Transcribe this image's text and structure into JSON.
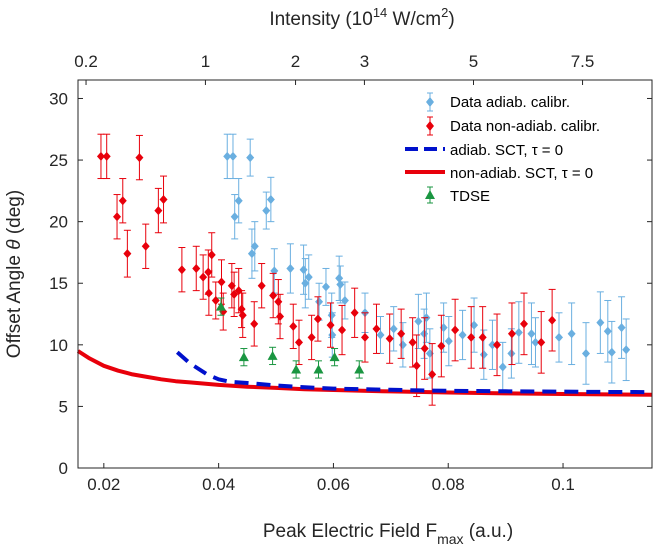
{
  "chart_data": {
    "type": "scatter",
    "xlabel_main": "Peak Electric Field F",
    "xlabel_sub": "max",
    "xlabel_unit": " (a.u.)",
    "ylabel_main": "Offset Angle ",
    "ylabel_symbol": "θ",
    "ylabel_unit": " (deg)",
    "top_xlabel_main": "Intensity (10",
    "top_xlabel_sup1": "14",
    "top_xlabel_mid": " W/cm",
    "top_xlabel_sup2": "2",
    "top_xlabel_end": ")",
    "xlim": [
      0.0155,
      0.1155
    ],
    "ylim": [
      0,
      31.5
    ],
    "x_ticks": [
      0.02,
      0.04,
      0.06,
      0.08,
      0.1
    ],
    "x_tick_labels": [
      "0.02",
      "0.04",
      "0.06",
      "0.08",
      "0.1"
    ],
    "y_ticks": [
      0,
      5,
      10,
      15,
      20,
      25,
      30
    ],
    "y_tick_labels": [
      "0",
      "5",
      "10",
      "15",
      "20",
      "25",
      "30"
    ],
    "top_ticks": [
      {
        "x": 0.0169,
        "label": "0.2"
      },
      {
        "x": 0.0377,
        "label": "1"
      },
      {
        "x": 0.0534,
        "label": "2"
      },
      {
        "x": 0.0654,
        "label": "3"
      },
      {
        "x": 0.0844,
        "label": "5"
      },
      {
        "x": 0.1034,
        "label": "7.5"
      }
    ],
    "legend_position": "top-right",
    "series": [
      {
        "name": "Data adiab. calibr.",
        "kind": "errorbar-diamond",
        "color": "#6aafe0",
        "points": [
          [
            0.0415,
            25.3,
            1.8
          ],
          [
            0.0425,
            25.3,
            1.8
          ],
          [
            0.0455,
            25.2,
            1.5
          ],
          [
            0.0428,
            20.4,
            1.8
          ],
          [
            0.0435,
            21.7,
            1.8
          ],
          [
            0.0463,
            18.0,
            2.0
          ],
          [
            0.0483,
            20.9,
            1.5
          ],
          [
            0.0491,
            21.8,
            1.8
          ],
          [
            0.0458,
            17.4,
            2.0
          ],
          [
            0.0497,
            16.0,
            1.8
          ],
          [
            0.0525,
            16.2,
            2.0
          ],
          [
            0.0548,
            16.1,
            2.0
          ],
          [
            0.0551,
            15.0,
            2.0
          ],
          [
            0.0557,
            15.5,
            1.8
          ],
          [
            0.0575,
            13.5,
            1.5
          ],
          [
            0.0587,
            14.7,
            1.5
          ],
          [
            0.0597,
            12.4,
            1.8
          ],
          [
            0.061,
            15.4,
            1.8
          ],
          [
            0.0612,
            14.9,
            1.5
          ],
          [
            0.0598,
            10.8,
            1.8
          ],
          [
            0.062,
            13.6,
            1.5
          ],
          [
            0.0655,
            12.6,
            1.6
          ],
          [
            0.0682,
            10.8,
            1.5
          ],
          [
            0.0705,
            11.3,
            1.8
          ],
          [
            0.0721,
            10.0,
            1.8
          ],
          [
            0.0748,
            11.9,
            2.2
          ],
          [
            0.0758,
            10.9,
            2.0
          ],
          [
            0.0762,
            12.2,
            2.0
          ],
          [
            0.0792,
            11.4,
            2.0
          ],
          [
            0.0825,
            10.8,
            2.0
          ],
          [
            0.0845,
            11.6,
            2.2
          ],
          [
            0.0877,
            10.0,
            2.0
          ],
          [
            0.0895,
            8.2,
            2.0
          ],
          [
            0.0923,
            11.0,
            2.5
          ],
          [
            0.0945,
            10.9,
            2.5
          ],
          [
            0.0952,
            10.2,
            2.0
          ],
          [
            0.0993,
            10.6,
            2.0
          ],
          [
            0.1015,
            10.9,
            2.5
          ],
          [
            0.104,
            9.3,
            2.5
          ],
          [
            0.1065,
            11.8,
            2.5
          ],
          [
            0.1078,
            11.1,
            2.5
          ],
          [
            0.1085,
            9.4,
            2.5
          ],
          [
            0.1102,
            11.4,
            2.5
          ],
          [
            0.111,
            9.6,
            2.5
          ],
          [
            0.0768,
            9.3,
            2.0
          ],
          [
            0.0801,
            10.3,
            2.0
          ],
          [
            0.0862,
            9.2,
            2.0
          ],
          [
            0.091,
            9.3,
            2.0
          ]
        ]
      },
      {
        "name": "Data non-adiab. calibr.",
        "kind": "errorbar-diamond",
        "color": "#e8000b",
        "points": [
          [
            0.0195,
            25.3,
            1.8
          ],
          [
            0.0205,
            25.3,
            1.8
          ],
          [
            0.0223,
            20.4,
            1.8
          ],
          [
            0.0233,
            21.7,
            1.8
          ],
          [
            0.0241,
            17.4,
            1.9
          ],
          [
            0.0262,
            25.2,
            1.8
          ],
          [
            0.0273,
            18.0,
            1.8
          ],
          [
            0.0295,
            20.9,
            1.8
          ],
          [
            0.0304,
            21.8,
            1.9
          ],
          [
            0.0336,
            16.1,
            1.8
          ],
          [
            0.0361,
            16.2,
            1.8
          ],
          [
            0.0373,
            15.5,
            1.8
          ],
          [
            0.0382,
            15.9,
            1.8
          ],
          [
            0.0388,
            17.3,
            1.8
          ],
          [
            0.0383,
            14.2,
            1.8
          ],
          [
            0.0405,
            15.1,
            1.8
          ],
          [
            0.0395,
            13.6,
            1.5
          ],
          [
            0.0408,
            12.7,
            1.5
          ],
          [
            0.0423,
            14.8,
            1.8
          ],
          [
            0.0427,
            14.1,
            1.8
          ],
          [
            0.0435,
            14.4,
            1.8
          ],
          [
            0.044,
            12.9,
            1.5
          ],
          [
            0.0442,
            12.4,
            1.8
          ],
          [
            0.0462,
            11.7,
            1.8
          ],
          [
            0.0475,
            14.8,
            1.8
          ],
          [
            0.0495,
            14.0,
            1.8
          ],
          [
            0.0504,
            13.5,
            1.8
          ],
          [
            0.0507,
            12.3,
            1.8
          ],
          [
            0.053,
            11.5,
            1.8
          ],
          [
            0.054,
            10.2,
            1.8
          ],
          [
            0.0562,
            10.6,
            1.8
          ],
          [
            0.0573,
            12.1,
            1.8
          ],
          [
            0.0595,
            11.6,
            1.8
          ],
          [
            0.0615,
            11.2,
            2.0
          ],
          [
            0.0637,
            12.6,
            2.0
          ],
          [
            0.0655,
            10.6,
            2.0
          ],
          [
            0.0675,
            11.3,
            2.0
          ],
          [
            0.0698,
            10.5,
            2.0
          ],
          [
            0.0718,
            10.9,
            2.0
          ],
          [
            0.0738,
            10.2,
            2.0
          ],
          [
            0.0759,
            9.7,
            2.5
          ],
          [
            0.0772,
            7.6,
            2.5
          ],
          [
            0.0788,
            9.9,
            2.5
          ],
          [
            0.0812,
            11.2,
            2.5
          ],
          [
            0.084,
            10.6,
            2.5
          ],
          [
            0.086,
            10.6,
            2.5
          ],
          [
            0.0885,
            10.0,
            2.5
          ],
          [
            0.0911,
            10.9,
            2.5
          ],
          [
            0.0932,
            11.7,
            2.5
          ],
          [
            0.0962,
            10.2,
            2.5
          ],
          [
            0.0981,
            12.0,
            2.5
          ],
          [
            0.0745,
            8.3,
            2.5
          ]
        ]
      },
      {
        "name": "adiab. SCT, τ = 0",
        "kind": "dashed-line",
        "color": "#0011cc",
        "x": [
          0.0328,
          0.035,
          0.038,
          0.04,
          0.042,
          0.045,
          0.05,
          0.055,
          0.06,
          0.065,
          0.07,
          0.075,
          0.08,
          0.085,
          0.09,
          0.095,
          0.1,
          0.105,
          0.11,
          0.1155
        ],
        "y": [
          9.4,
          8.5,
          7.6,
          7.2,
          7.0,
          6.9,
          6.7,
          6.55,
          6.45,
          6.4,
          6.35,
          6.3,
          6.27,
          6.25,
          6.23,
          6.21,
          6.2,
          6.18,
          6.17,
          6.16
        ]
      },
      {
        "name": "non-adiab. SCT, τ = 0",
        "kind": "solid-line",
        "color": "#e8000b",
        "x": [
          0.0155,
          0.0175,
          0.02,
          0.0225,
          0.025,
          0.0275,
          0.03,
          0.0325,
          0.035,
          0.0375,
          0.04,
          0.045,
          0.05,
          0.055,
          0.06,
          0.065,
          0.07,
          0.08,
          0.09,
          0.1,
          0.11,
          0.1155
        ],
        "y": [
          9.5,
          8.9,
          8.3,
          7.9,
          7.6,
          7.4,
          7.2,
          7.05,
          6.95,
          6.85,
          6.75,
          6.6,
          6.5,
          6.4,
          6.33,
          6.27,
          6.22,
          6.13,
          6.06,
          6.01,
          5.97,
          5.95
        ]
      },
      {
        "name": "TDSE",
        "kind": "errorbar-triangle",
        "color": "#1a9641",
        "points": [
          [
            0.0404,
            13.1,
            0.7
          ],
          [
            0.0444,
            9.0,
            0.7
          ],
          [
            0.0494,
            9.1,
            0.7
          ],
          [
            0.0535,
            8.0,
            0.7
          ],
          [
            0.0574,
            8.0,
            0.7
          ],
          [
            0.0602,
            9.0,
            0.7
          ],
          [
            0.0645,
            8.0,
            0.7
          ]
        ]
      }
    ]
  }
}
